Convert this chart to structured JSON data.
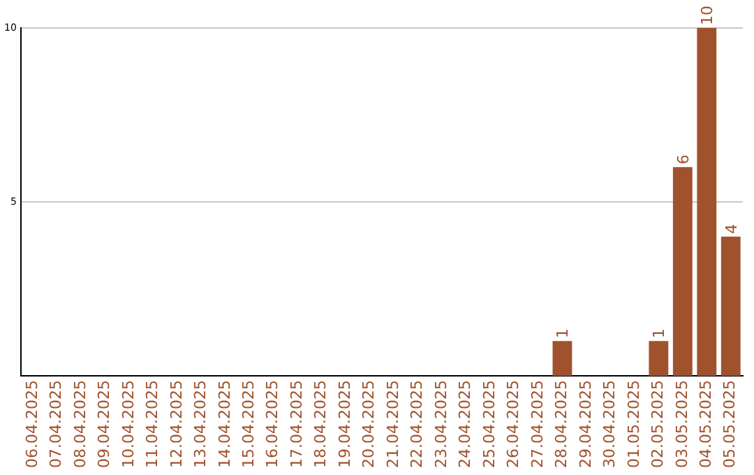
{
  "chart_data": {
    "type": "bar",
    "categories": [
      "06.04.2025",
      "07.04.2025",
      "08.04.2025",
      "09.04.2025",
      "10.04.2025",
      "11.04.2025",
      "12.04.2025",
      "13.04.2025",
      "14.04.2025",
      "15.04.2025",
      "16.04.2025",
      "17.04.2025",
      "18.04.2025",
      "19.04.2025",
      "20.04.2025",
      "21.04.2025",
      "22.04.2025",
      "23.04.2025",
      "24.04.2025",
      "25.04.2025",
      "26.04.2025",
      "27.04.2025",
      "28.04.2025",
      "29.04.2025",
      "30.04.2025",
      "01.05.2025",
      "02.05.2025",
      "03.05.2025",
      "04.05.2025",
      "05.05.2025"
    ],
    "values": [
      0,
      0,
      0,
      0,
      0,
      0,
      0,
      0,
      0,
      0,
      0,
      0,
      0,
      0,
      0,
      0,
      0,
      0,
      0,
      0,
      0,
      0,
      1,
      0,
      0,
      0,
      1,
      6,
      10,
      4
    ],
    "value_labels": [
      null,
      null,
      null,
      null,
      null,
      null,
      null,
      null,
      null,
      null,
      null,
      null,
      null,
      null,
      null,
      null,
      null,
      null,
      null,
      null,
      null,
      null,
      "1",
      null,
      null,
      null,
      "1",
      "6",
      "10",
      "4"
    ],
    "color": "#a0522d",
    "ylim": [
      0,
      10
    ],
    "yticks": [
      5,
      10
    ],
    "grid": "y",
    "legend": false
  }
}
